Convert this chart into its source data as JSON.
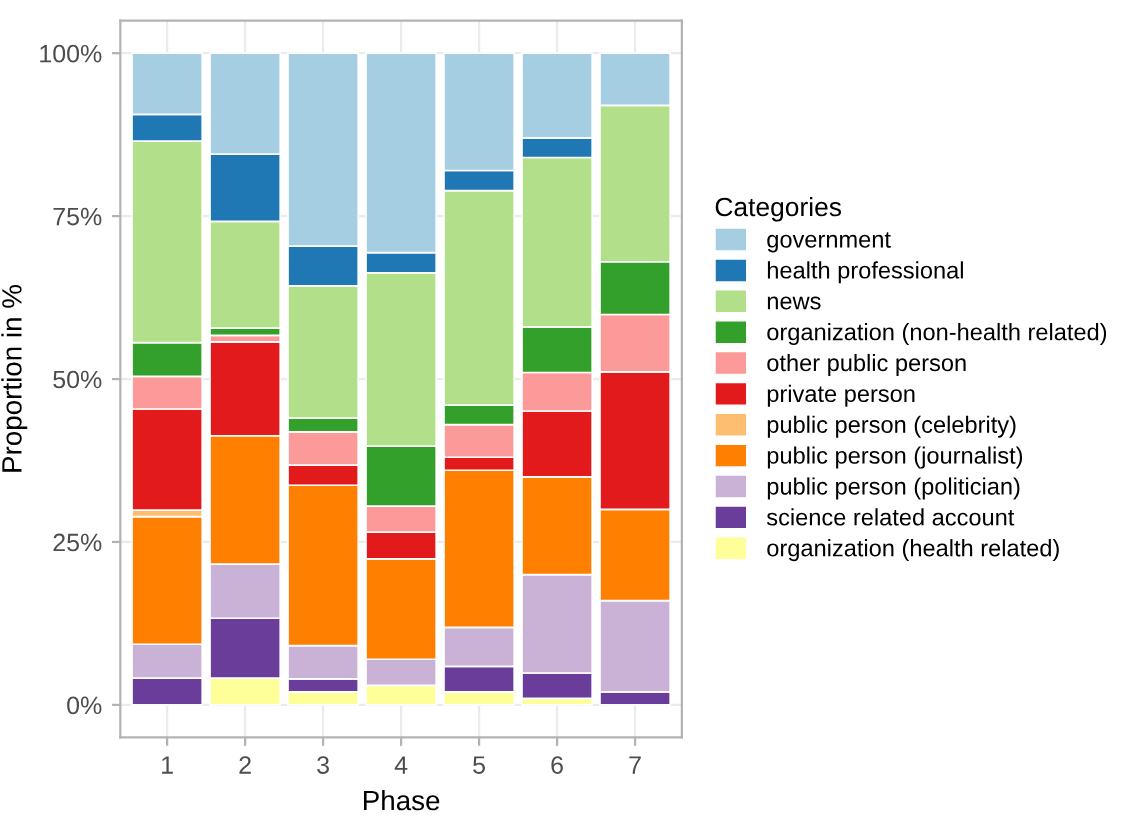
{
  "chart_data": {
    "type": "bar",
    "stacked": true,
    "xlabel": "Phase",
    "ylabel": "Proportion in %",
    "legend_title": "Categories",
    "legend": "right",
    "grid": true,
    "categories": [
      "1",
      "2",
      "3",
      "4",
      "5",
      "6",
      "7"
    ],
    "ylim": [
      -5,
      105
    ],
    "yticks": [
      {
        "value": 0,
        "label": "0%"
      },
      {
        "value": 25,
        "label": "25%"
      },
      {
        "value": 50,
        "label": "50%"
      },
      {
        "value": 75,
        "label": "75%"
      },
      {
        "value": 100,
        "label": "100%"
      }
    ],
    "series": [
      {
        "name": "organization (health related)",
        "color": "#ffff99",
        "values": [
          0,
          4.1,
          2.0,
          3.0,
          2.0,
          1.0,
          0
        ]
      },
      {
        "name": "science related account",
        "color": "#6a3d9a",
        "values": [
          4.1,
          9.2,
          2.0,
          0,
          3.9,
          3.9,
          2.0
        ]
      },
      {
        "name": "public person (politician)",
        "color": "#cab2d6",
        "values": [
          5.2,
          8.3,
          5.1,
          4.0,
          6.0,
          15.1,
          14.0
        ]
      },
      {
        "name": "public person (journalist)",
        "color": "#ff7f00",
        "values": [
          19.6,
          19.7,
          24.6,
          15.4,
          24.1,
          15.0,
          14.0
        ]
      },
      {
        "name": "public person (celebrity)",
        "color": "#fdbf6f",
        "values": [
          1.0,
          0,
          0,
          0,
          0,
          0,
          0
        ]
      },
      {
        "name": "private person",
        "color": "#e31a1c",
        "values": [
          15.5,
          14.4,
          3.1,
          4.1,
          2.0,
          10.1,
          21.1
        ]
      },
      {
        "name": "other public person",
        "color": "#fb9a99",
        "values": [
          5.0,
          1.0,
          5.1,
          4.0,
          5.0,
          5.9,
          8.8
        ]
      },
      {
        "name": "organization (non-health related)",
        "color": "#33a02c",
        "values": [
          5.2,
          1.1,
          2.1,
          9.2,
          3.0,
          7.0,
          8.1
        ]
      },
      {
        "name": "news",
        "color": "#b2df8a",
        "values": [
          30.9,
          16.4,
          20.3,
          26.6,
          32.9,
          26.0,
          24.0
        ]
      },
      {
        "name": "health professional",
        "color": "#1f78b4",
        "values": [
          4.1,
          10.3,
          6.1,
          3.1,
          3.1,
          3.0,
          0
        ]
      },
      {
        "name": "government",
        "color": "#a6cee3",
        "values": [
          9.4,
          15.5,
          29.6,
          30.6,
          18.0,
          13.0,
          8.0
        ]
      }
    ]
  }
}
